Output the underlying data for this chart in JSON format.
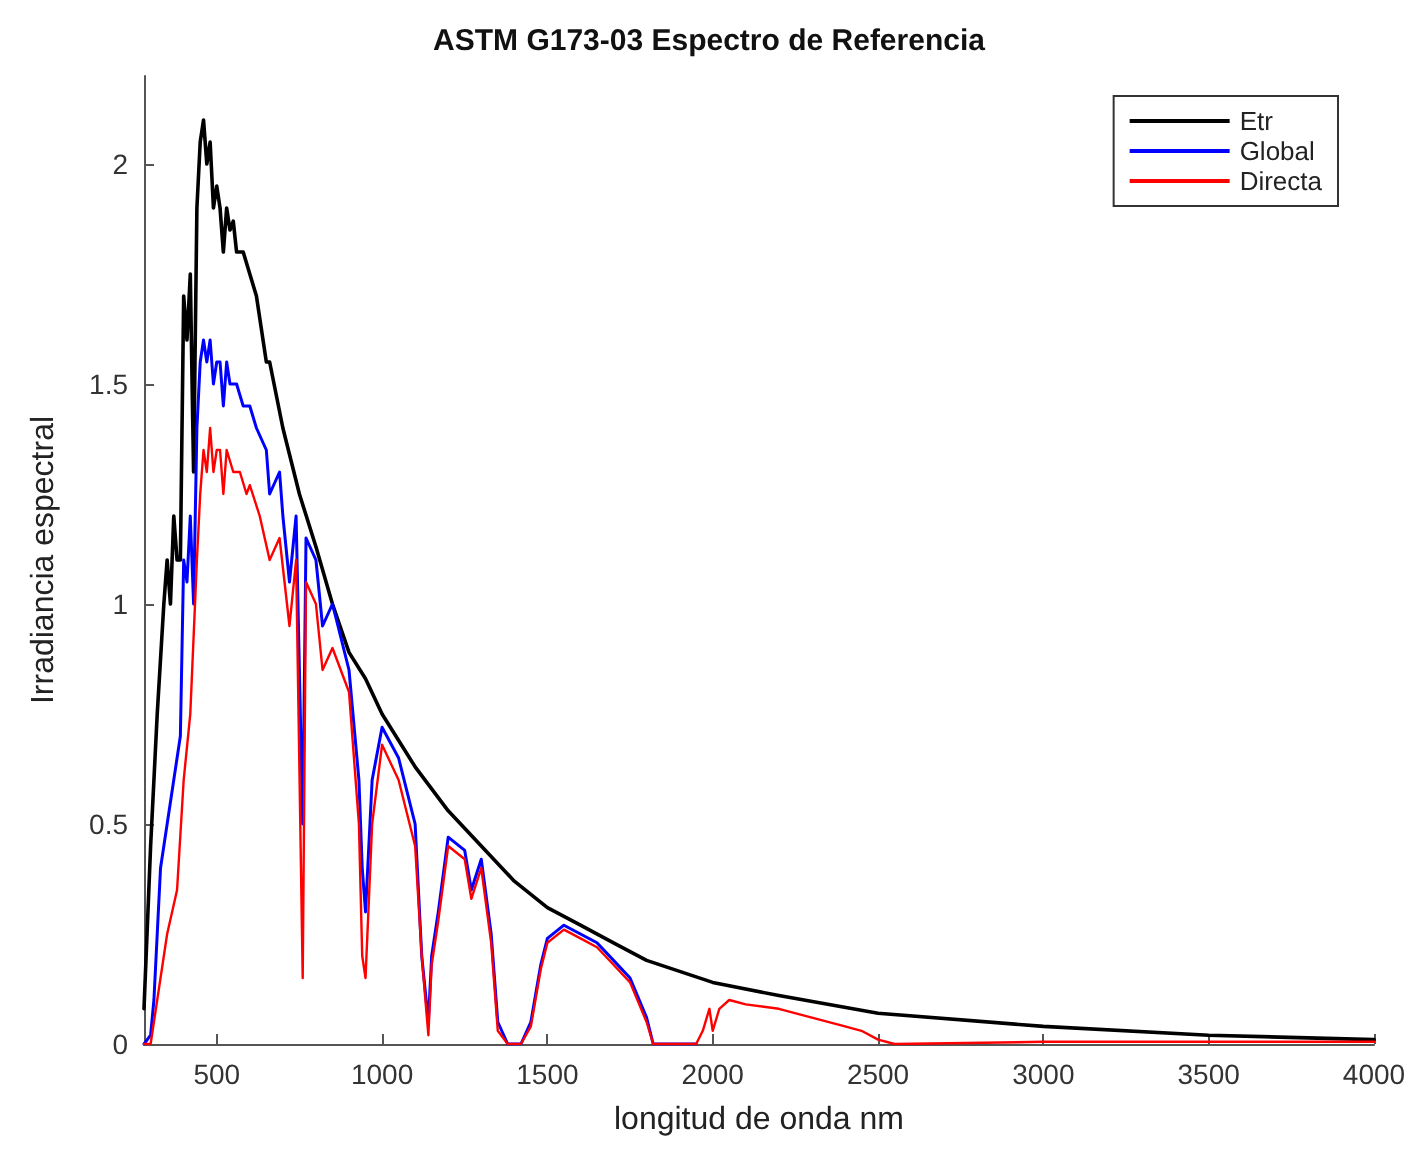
{
  "chart_data": {
    "type": "line",
    "title": "ASTM G173-03 Espectro de Referencia",
    "xlabel": "longitud de onda nm",
    "ylabel": "Irradiancia espectral",
    "xlim": [
      280,
      4000
    ],
    "xticks": [
      500,
      1000,
      1500,
      2000,
      2500,
      3000,
      3500,
      4000
    ],
    "ylim": [
      0,
      2.2
    ],
    "yticks": [
      0,
      0.5,
      1,
      1.5,
      2
    ],
    "grid": false,
    "legend": "top right",
    "marker": "none",
    "line_style": "solid",
    "series": [
      {
        "name": "Etr",
        "color": "#000000",
        "x": [
          280,
          300,
          320,
          340,
          350,
          360,
          370,
          380,
          390,
          400,
          410,
          420,
          430,
          440,
          450,
          460,
          470,
          480,
          490,
          500,
          510,
          520,
          530,
          540,
          550,
          560,
          580,
          600,
          620,
          650,
          660,
          700,
          750,
          800,
          850,
          900,
          950,
          1000,
          1100,
          1200,
          1300,
          1400,
          1500,
          1600,
          1700,
          1800,
          2000,
          2200,
          2500,
          3000,
          3500,
          4000
        ],
        "values": [
          0.08,
          0.45,
          0.75,
          1.0,
          1.1,
          1.0,
          1.2,
          1.1,
          1.1,
          1.7,
          1.6,
          1.75,
          1.3,
          1.9,
          2.05,
          2.1,
          2.0,
          2.05,
          1.9,
          1.95,
          1.9,
          1.8,
          1.9,
          1.85,
          1.87,
          1.8,
          1.8,
          1.75,
          1.7,
          1.55,
          1.55,
          1.4,
          1.25,
          1.13,
          1.0,
          0.89,
          0.83,
          0.75,
          0.63,
          0.53,
          0.45,
          0.37,
          0.31,
          0.27,
          0.23,
          0.19,
          0.14,
          0.11,
          0.07,
          0.04,
          0.02,
          0.01
        ]
      },
      {
        "name": "Global",
        "color": "#0000ff",
        "x": [
          280,
          300,
          310,
          320,
          330,
          340,
          350,
          360,
          370,
          380,
          390,
          400,
          410,
          420,
          430,
          440,
          450,
          460,
          470,
          480,
          490,
          500,
          510,
          520,
          530,
          540,
          560,
          580,
          600,
          620,
          650,
          660,
          690,
          700,
          720,
          740,
          760,
          770,
          800,
          820,
          850,
          900,
          930,
          940,
          950,
          970,
          1000,
          1050,
          1100,
          1120,
          1140,
          1150,
          1170,
          1200,
          1250,
          1270,
          1300,
          1330,
          1350,
          1380,
          1420,
          1450,
          1480,
          1500,
          1550,
          1600,
          1650,
          1700,
          1750,
          1800,
          1820,
          1950
        ],
        "values": [
          0,
          0.02,
          0.1,
          0.25,
          0.4,
          0.45,
          0.5,
          0.55,
          0.6,
          0.65,
          0.7,
          1.1,
          1.05,
          1.2,
          1.0,
          1.4,
          1.55,
          1.6,
          1.55,
          1.6,
          1.5,
          1.55,
          1.55,
          1.45,
          1.55,
          1.5,
          1.5,
          1.45,
          1.45,
          1.4,
          1.35,
          1.25,
          1.3,
          1.2,
          1.05,
          1.2,
          0.5,
          1.15,
          1.1,
          0.95,
          1.0,
          0.85,
          0.6,
          0.4,
          0.3,
          0.6,
          0.72,
          0.65,
          0.5,
          0.2,
          0.05,
          0.2,
          0.3,
          0.47,
          0.44,
          0.35,
          0.42,
          0.25,
          0.05,
          0,
          0,
          0.05,
          0.18,
          0.24,
          0.27,
          0.25,
          0.23,
          0.19,
          0.15,
          0.06,
          0,
          0
        ]
      },
      {
        "name": "Directa",
        "color": "#ff0000",
        "x": [
          280,
          300,
          320,
          350,
          380,
          400,
          420,
          440,
          450,
          460,
          470,
          480,
          490,
          500,
          510,
          520,
          530,
          550,
          570,
          590,
          600,
          630,
          660,
          690,
          720,
          740,
          760,
          770,
          800,
          820,
          850,
          900,
          930,
          940,
          950,
          970,
          1000,
          1050,
          1100,
          1120,
          1140,
          1150,
          1170,
          1200,
          1250,
          1270,
          1300,
          1330,
          1350,
          1380,
          1420,
          1450,
          1480,
          1500,
          1550,
          1600,
          1650,
          1700,
          1750,
          1800,
          1820,
          1950,
          1970,
          1990,
          2000,
          2020,
          2050,
          2100,
          2200,
          2300,
          2400,
          2450,
          2500,
          2550,
          3000,
          3500,
          4000
        ],
        "values": [
          0,
          0,
          0.1,
          0.25,
          0.35,
          0.6,
          0.75,
          1.1,
          1.25,
          1.35,
          1.3,
          1.4,
          1.3,
          1.35,
          1.35,
          1.25,
          1.35,
          1.3,
          1.3,
          1.25,
          1.27,
          1.2,
          1.1,
          1.15,
          0.95,
          1.1,
          0.15,
          1.05,
          1.0,
          0.85,
          0.9,
          0.8,
          0.5,
          0.2,
          0.15,
          0.5,
          0.68,
          0.6,
          0.45,
          0.2,
          0.02,
          0.18,
          0.28,
          0.45,
          0.42,
          0.33,
          0.4,
          0.23,
          0.03,
          0,
          0,
          0.04,
          0.17,
          0.23,
          0.26,
          0.24,
          0.22,
          0.18,
          0.14,
          0.05,
          0,
          0,
          0.03,
          0.08,
          0.03,
          0.08,
          0.1,
          0.09,
          0.08,
          0.06,
          0.04,
          0.03,
          0.01,
          0,
          0.005,
          0.005,
          0.005
        ]
      }
    ]
  }
}
